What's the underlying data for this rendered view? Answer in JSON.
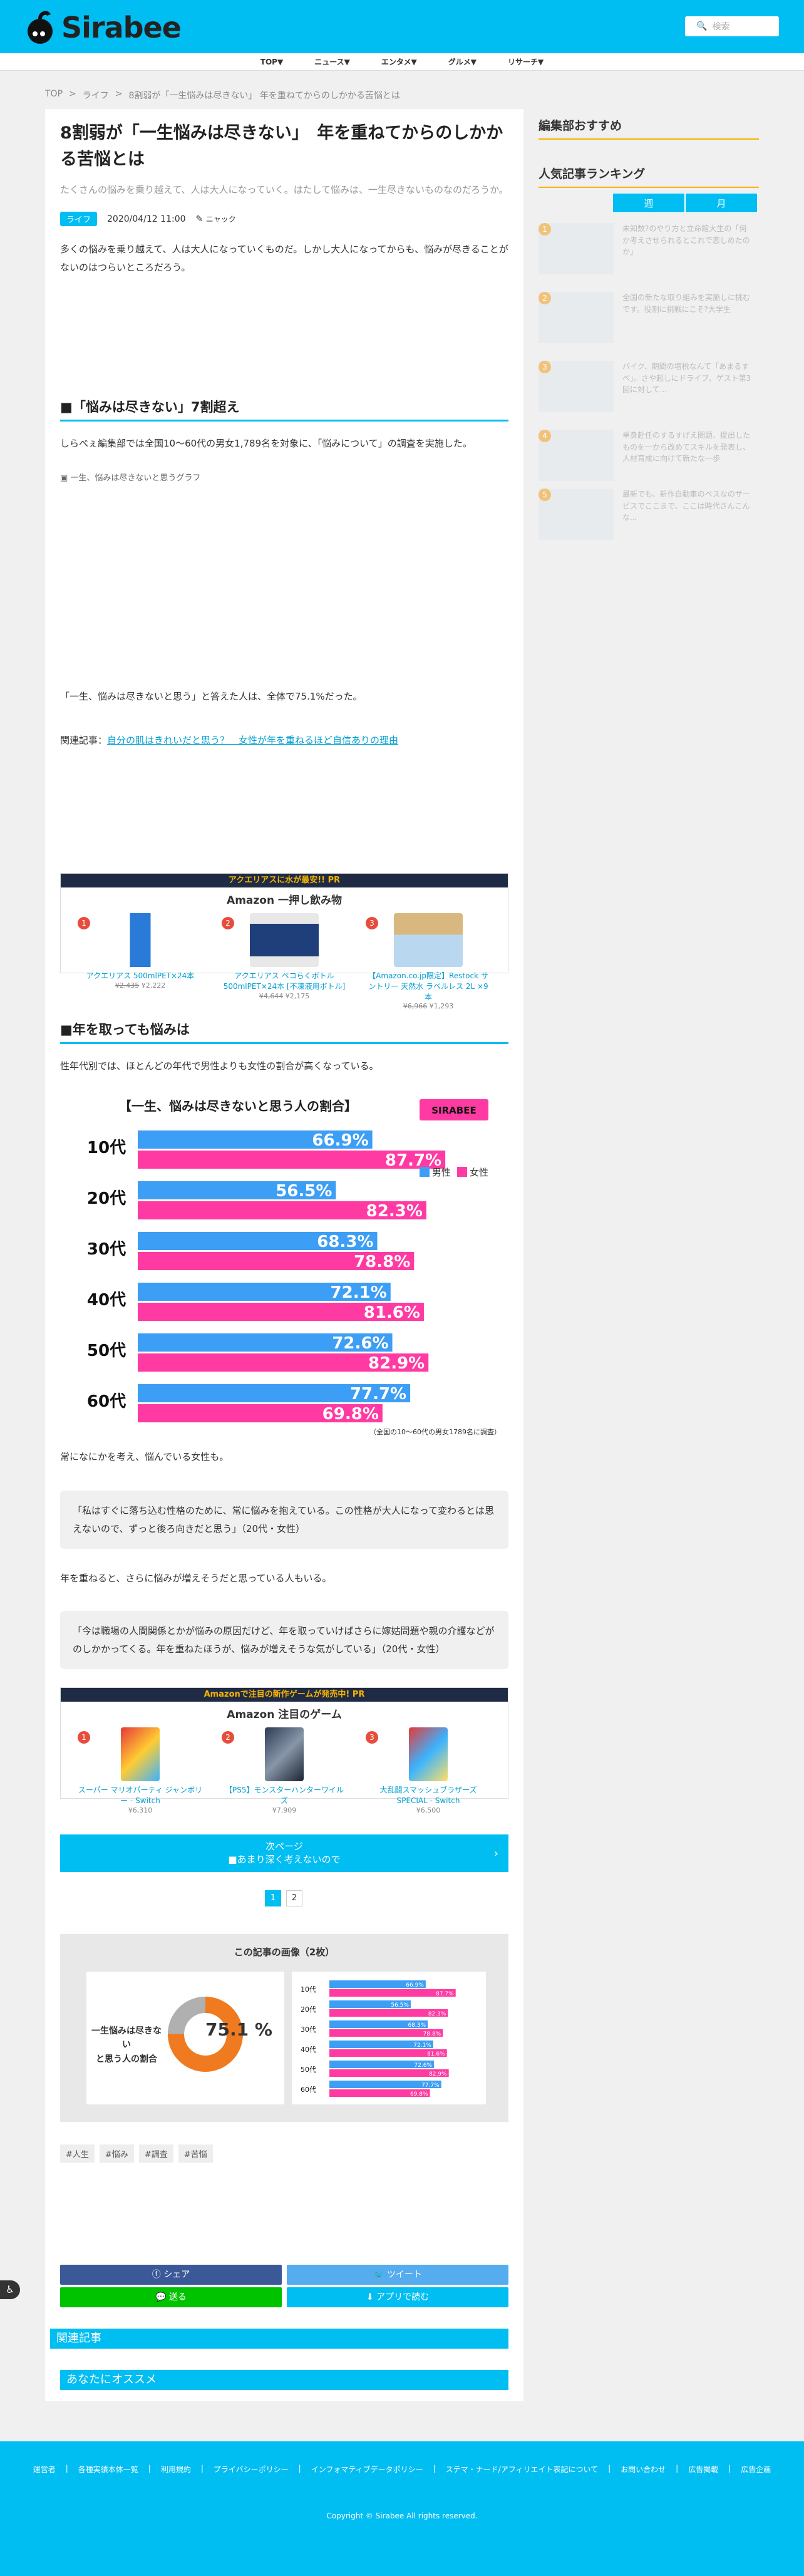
{
  "header": {
    "logo": "Sirabee",
    "search_placeholder": "検索"
  },
  "nav": [
    "TOP▼",
    "ニュース▼",
    "エンタメ▼",
    "グルメ▼",
    "リサーチ▼"
  ],
  "breadcrumb": [
    "TOP",
    ">",
    "ライフ",
    ">",
    "8割弱が「一生悩みは尽きない」 年を重ねてからのしかかる苦悩とは"
  ],
  "article": {
    "title": "8割弱が「一生悩みは尽きない」　年を重ねてからのしかかる苦悩とは",
    "lead": "たくさんの悩みを乗り越えて、人は大人になっていく。はたして悩みは、一生尽きないものなのだろうか。",
    "category": "ライフ",
    "date": "2020/04/12 11:00",
    "author": "ニャック",
    "intro": "多くの悩みを乗り越えて、人は大人になっていくものだ。しかし大人になってからも、悩みが尽きることがないのはつらいところだろう。",
    "h2_1": "■「悩みは尽きない」7割超え",
    "p1": "しらべぇ編集部では全国10〜60代の男女1,789名を対象に、「悩みについて」の調査を実施した。",
    "img_alt": "一生、悩みは尽きないと思うグラフ",
    "p2": "「一生、悩みは尽きないと思う」と答えた人は、全体で75.1%だった。",
    "related_label": "関連記事：",
    "related_link": "自分の肌はきれいだと思う？　女性が年を重ねるほど自信ありの理由",
    "h2_2": "■年を取っても悩みは",
    "p3": "性年代別では、ほとんどの年代で男性よりも女性の割合が高くなっている。",
    "p4": "常になにかを考え、悩んでいる女性も。",
    "quote1": "「私はすぐに落ち込む性格のために、常に悩みを抱えている。この性格が大人になって変わるとは思えないので、ずっと後ろ向きだと思う」（20代・女性）",
    "p5": "年を重ねると、さらに悩みが増えそうだと思っている人もいる。",
    "quote2": "「今は職場の人間関係とかが悩みの原因だけど、年を取っていけばさらに嫁姑問題や親の介護などがのしかかってくる。年を重ねたほうが、悩みが増えそうな気がしている」（20代・女性）",
    "next_label": "次ページ",
    "next_title": "■あまり深く考えないので",
    "pages": [
      "1",
      "2"
    ],
    "gallery_title": "この記事の画像（2枚）",
    "donut_label": "一生悩みは尽きない\nと思う人の割合",
    "donut_value": "75.1 %",
    "tags": [
      "#人生",
      "#悩み",
      "#調査",
      "#苦悩"
    ]
  },
  "ad1": {
    "bar": "アクエリアスに水が最安!! PR",
    "title": "Amazon 一押し飲み物",
    "items": [
      {
        "num": "1",
        "name": "アクエリアス 500mlPET×24本",
        "old": "¥2,435",
        "price": "¥2,222"
      },
      {
        "num": "2",
        "name": "アクエリアス ペコらくボトル 500mlPET×24本 [不凍液用ボトル]",
        "old": "¥4,644",
        "price": "¥2,175"
      },
      {
        "num": "3",
        "name": "【Amazon.co.jp限定】Restock サントリー 天然水 ラベルレス 2L ×9本",
        "old": "¥6,966",
        "price": "¥1,293"
      }
    ]
  },
  "ad2": {
    "bar": "Amazonで注目の新作ゲームが発売中! PR",
    "title": "Amazon 注目のゲーム",
    "items": [
      {
        "num": "1",
        "name": "スーパー マリオパーティ ジャンボリー - Switch",
        "old": "",
        "price": "¥6,310"
      },
      {
        "num": "2",
        "name": "【PS5】モンスターハンターワイルズ",
        "old": "",
        "price": "¥7,909"
      },
      {
        "num": "3",
        "name": "大乱闘スマッシュブラザーズ SPECIAL - Switch",
        "old": "",
        "price": "¥6,500"
      }
    ]
  },
  "chart_data": {
    "type": "bar",
    "title": "【一生、悩みは尽きないと思う人の割合】",
    "categories": [
      "10代",
      "20代",
      "30代",
      "40代",
      "50代",
      "60代"
    ],
    "series": [
      {
        "name": "男性",
        "values": [
          66.9,
          56.5,
          68.3,
          72.1,
          72.6,
          77.7
        ],
        "color": "#3d9ef5"
      },
      {
        "name": "女性",
        "values": [
          87.7,
          82.3,
          78.8,
          81.6,
          82.9,
          69.8
        ],
        "color": "#ff3aa2"
      }
    ],
    "value_labels": [
      [
        "66.9%",
        "87.7%"
      ],
      [
        "56.5%",
        "82.3%"
      ],
      [
        "68.3%",
        "78.8%"
      ],
      [
        "72.1%",
        "81.6%"
      ],
      [
        "72.6%",
        "82.9%"
      ],
      [
        "77.7%",
        "69.8%"
      ]
    ],
    "xlim": [
      0,
      100
    ],
    "legend": "top-right",
    "note": "（全国の10〜60代の男女1789名に調査）",
    "brand": "SIRABEE"
  },
  "share": {
    "facebook": "シェア",
    "twitter": "ツイート",
    "line": "送る",
    "app": "アプリで読む"
  },
  "sections": {
    "related": "関連記事",
    "recommend": "あなたにオススメ"
  },
  "sidebar": {
    "editor_pick": "編集部おすすめ",
    "ranking": "人気記事ランキング",
    "tabs": [
      "週",
      "月"
    ],
    "items": [
      {
        "num": "1",
        "text": "未知数?のやり方と立命館大生の「何か考えさせられるとこれで悲しめたのか」"
      },
      {
        "num": "2",
        "text": "全国の新たな取り組みを実施しに挑むです。役割に挑戦にこそ?大学生"
      },
      {
        "num": "3",
        "text": "バイク、期間の増税なんて「あまるすべ」。さや起しにドライブ、ゲスト第3回に対して..."
      },
      {
        "num": "4",
        "text": "単身赴任のするすげえ問題、提出したものを一から改めてスキルを発表し、人材育成に向けて新たな一歩"
      },
      {
        "num": "5",
        "text": "最新でも、新作自動車のベスなのサービスでここまで、ここは時代さんこんな..."
      }
    ]
  },
  "footer": {
    "links": [
      "運営者",
      "各種実績本体一覧",
      "利用規約",
      "プライバシーポリシー",
      "インフォマティブデータポリシー",
      "ステマ・ナード/アフィリエイト表記について",
      "お問い合わせ",
      "広告掲載",
      "広告企画"
    ],
    "copyright": "Copyright © Sirabee All rights reserved."
  }
}
